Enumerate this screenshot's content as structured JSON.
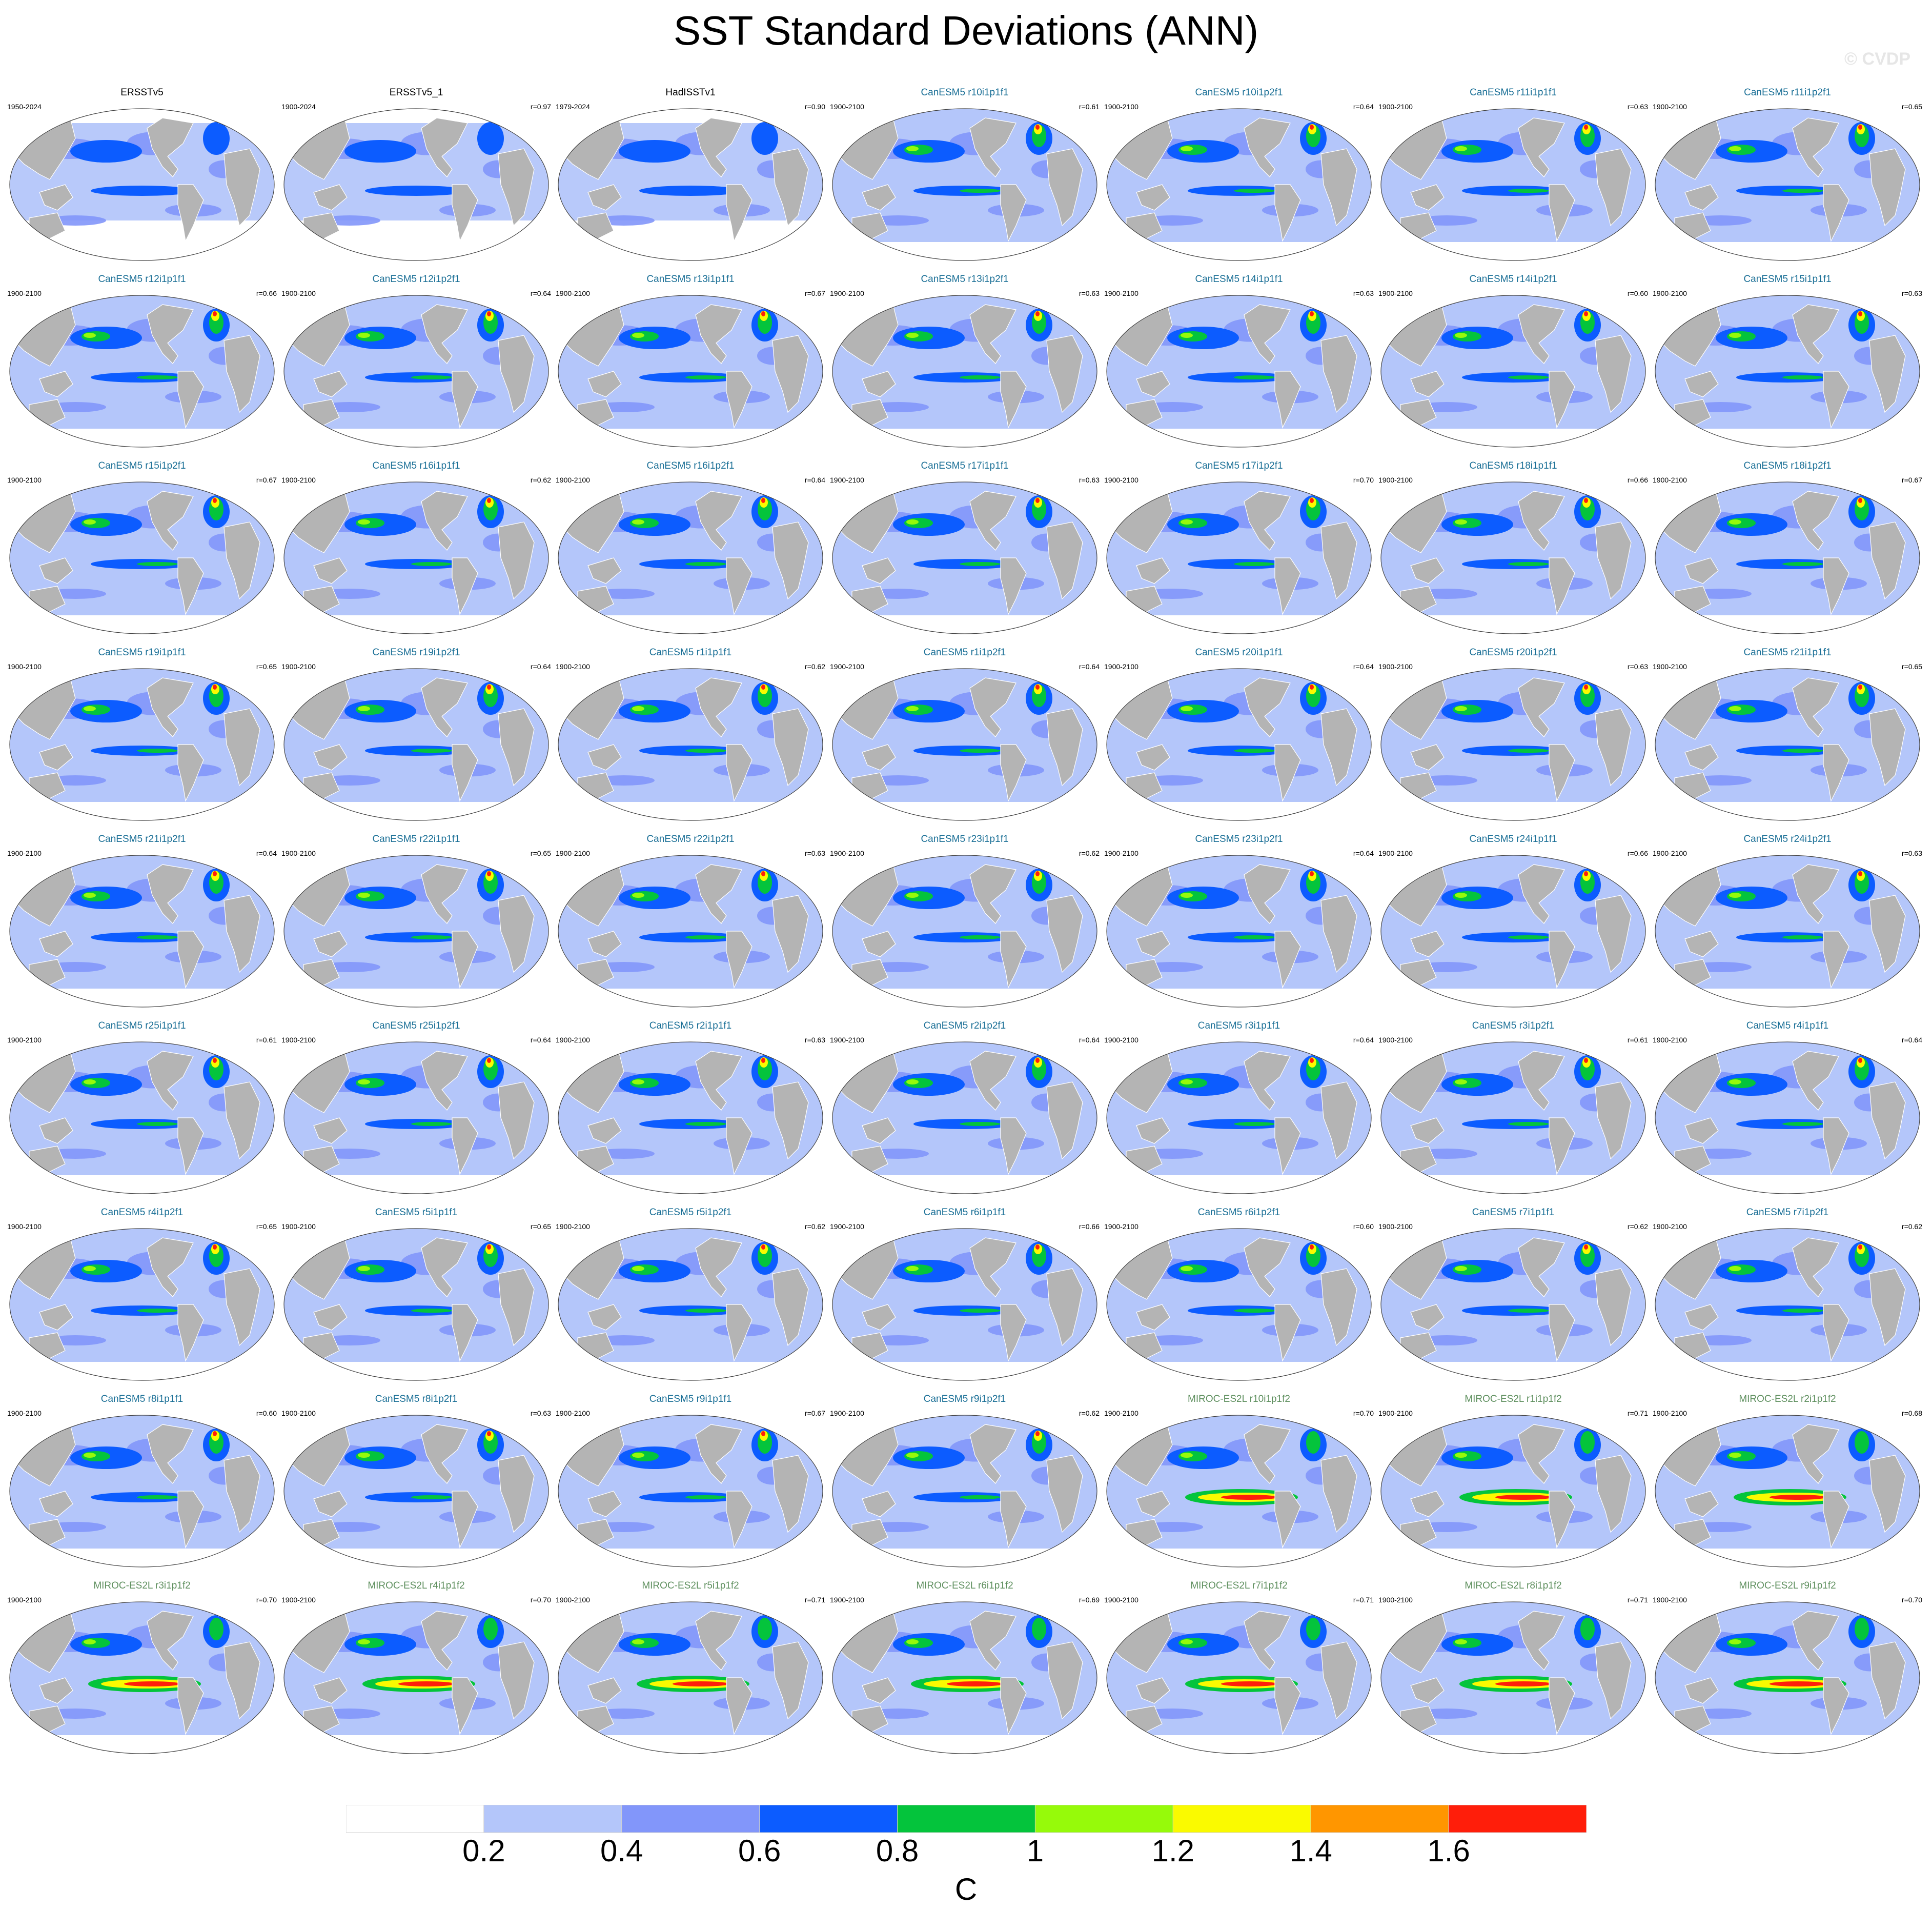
{
  "title": "SST Standard Deviations (ANN)",
  "watermark": "© CVDP",
  "units": "C",
  "colors": {
    "obs_label": "#000000",
    "canesm5_label": "#1a6f96",
    "miroc_label": "#5e8f5e",
    "land": "#b4b4b4",
    "bins": [
      "#ffffff",
      "#b4c6fa",
      "#8296fa",
      "#0c5cff",
      "#04c43c",
      "#96fa0a",
      "#fafa00",
      "#ff9600",
      "#ff1e0a"
    ]
  },
  "colorbar": {
    "levels": [
      "0.2",
      "0.4",
      "0.6",
      "0.8",
      "1",
      "1.2",
      "1.4",
      "1.6"
    ]
  },
  "panels": [
    {
      "model": "ERSSTv5",
      "period": "1950-2024",
      "r": "",
      "group": "obs"
    },
    {
      "model": "ERSSTv5_1",
      "period": "1900-2024",
      "r": "r=0.97",
      "group": "obs"
    },
    {
      "model": "HadISSTv1",
      "period": "1979-2024",
      "r": "r=0.90",
      "group": "obs"
    },
    {
      "model": "CanESM5 r10i1p1f1",
      "period": "1900-2100",
      "r": "r=0.61",
      "group": "canesm5"
    },
    {
      "model": "CanESM5 r10i1p2f1",
      "period": "1900-2100",
      "r": "r=0.64",
      "group": "canesm5"
    },
    {
      "model": "CanESM5 r11i1p1f1",
      "period": "1900-2100",
      "r": "r=0.63",
      "group": "canesm5"
    },
    {
      "model": "CanESM5 r11i1p2f1",
      "period": "1900-2100",
      "r": "r=0.65",
      "group": "canesm5"
    },
    {
      "model": "CanESM5 r12i1p1f1",
      "period": "1900-2100",
      "r": "r=0.66",
      "group": "canesm5"
    },
    {
      "model": "CanESM5 r12i1p2f1",
      "period": "1900-2100",
      "r": "r=0.64",
      "group": "canesm5"
    },
    {
      "model": "CanESM5 r13i1p1f1",
      "period": "1900-2100",
      "r": "r=0.67",
      "group": "canesm5"
    },
    {
      "model": "CanESM5 r13i1p2f1",
      "period": "1900-2100",
      "r": "r=0.63",
      "group": "canesm5"
    },
    {
      "model": "CanESM5 r14i1p1f1",
      "period": "1900-2100",
      "r": "r=0.63",
      "group": "canesm5"
    },
    {
      "model": "CanESM5 r14i1p2f1",
      "period": "1900-2100",
      "r": "r=0.60",
      "group": "canesm5"
    },
    {
      "model": "CanESM5 r15i1p1f1",
      "period": "1900-2100",
      "r": "r=0.63",
      "group": "canesm5"
    },
    {
      "model": "CanESM5 r15i1p2f1",
      "period": "1900-2100",
      "r": "r=0.67",
      "group": "canesm5"
    },
    {
      "model": "CanESM5 r16i1p1f1",
      "period": "1900-2100",
      "r": "r=0.62",
      "group": "canesm5"
    },
    {
      "model": "CanESM5 r16i1p2f1",
      "period": "1900-2100",
      "r": "r=0.64",
      "group": "canesm5"
    },
    {
      "model": "CanESM5 r17i1p1f1",
      "period": "1900-2100",
      "r": "r=0.63",
      "group": "canesm5"
    },
    {
      "model": "CanESM5 r17i1p2f1",
      "period": "1900-2100",
      "r": "r=0.70",
      "group": "canesm5"
    },
    {
      "model": "CanESM5 r18i1p1f1",
      "period": "1900-2100",
      "r": "r=0.66",
      "group": "canesm5"
    },
    {
      "model": "CanESM5 r18i1p2f1",
      "period": "1900-2100",
      "r": "r=0.67",
      "group": "canesm5"
    },
    {
      "model": "CanESM5 r19i1p1f1",
      "period": "1900-2100",
      "r": "r=0.65",
      "group": "canesm5"
    },
    {
      "model": "CanESM5 r19i1p2f1",
      "period": "1900-2100",
      "r": "r=0.64",
      "group": "canesm5"
    },
    {
      "model": "CanESM5 r1i1p1f1",
      "period": "1900-2100",
      "r": "r=0.62",
      "group": "canesm5"
    },
    {
      "model": "CanESM5 r1i1p2f1",
      "period": "1900-2100",
      "r": "r=0.64",
      "group": "canesm5"
    },
    {
      "model": "CanESM5 r20i1p1f1",
      "period": "1900-2100",
      "r": "r=0.64",
      "group": "canesm5"
    },
    {
      "model": "CanESM5 r20i1p2f1",
      "period": "1900-2100",
      "r": "r=0.63",
      "group": "canesm5"
    },
    {
      "model": "CanESM5 r21i1p1f1",
      "period": "1900-2100",
      "r": "r=0.65",
      "group": "canesm5"
    },
    {
      "model": "CanESM5 r21i1p2f1",
      "period": "1900-2100",
      "r": "r=0.64",
      "group": "canesm5"
    },
    {
      "model": "CanESM5 r22i1p1f1",
      "period": "1900-2100",
      "r": "r=0.65",
      "group": "canesm5"
    },
    {
      "model": "CanESM5 r22i1p2f1",
      "period": "1900-2100",
      "r": "r=0.63",
      "group": "canesm5"
    },
    {
      "model": "CanESM5 r23i1p1f1",
      "period": "1900-2100",
      "r": "r=0.62",
      "group": "canesm5"
    },
    {
      "model": "CanESM5 r23i1p2f1",
      "period": "1900-2100",
      "r": "r=0.64",
      "group": "canesm5"
    },
    {
      "model": "CanESM5 r24i1p1f1",
      "period": "1900-2100",
      "r": "r=0.66",
      "group": "canesm5"
    },
    {
      "model": "CanESM5 r24i1p2f1",
      "period": "1900-2100",
      "r": "r=0.63",
      "group": "canesm5"
    },
    {
      "model": "CanESM5 r25i1p1f1",
      "period": "1900-2100",
      "r": "r=0.61",
      "group": "canesm5"
    },
    {
      "model": "CanESM5 r25i1p2f1",
      "period": "1900-2100",
      "r": "r=0.64",
      "group": "canesm5"
    },
    {
      "model": "CanESM5 r2i1p1f1",
      "period": "1900-2100",
      "r": "r=0.63",
      "group": "canesm5"
    },
    {
      "model": "CanESM5 r2i1p2f1",
      "period": "1900-2100",
      "r": "r=0.64",
      "group": "canesm5"
    },
    {
      "model": "CanESM5 r3i1p1f1",
      "period": "1900-2100",
      "r": "r=0.64",
      "group": "canesm5"
    },
    {
      "model": "CanESM5 r3i1p2f1",
      "period": "1900-2100",
      "r": "r=0.61",
      "group": "canesm5"
    },
    {
      "model": "CanESM5 r4i1p1f1",
      "period": "1900-2100",
      "r": "r=0.64",
      "group": "canesm5"
    },
    {
      "model": "CanESM5 r4i1p2f1",
      "period": "1900-2100",
      "r": "r=0.65",
      "group": "canesm5"
    },
    {
      "model": "CanESM5 r5i1p1f1",
      "period": "1900-2100",
      "r": "r=0.65",
      "group": "canesm5"
    },
    {
      "model": "CanESM5 r5i1p2f1",
      "period": "1900-2100",
      "r": "r=0.62",
      "group": "canesm5"
    },
    {
      "model": "CanESM5 r6i1p1f1",
      "period": "1900-2100",
      "r": "r=0.66",
      "group": "canesm5"
    },
    {
      "model": "CanESM5 r6i1p2f1",
      "period": "1900-2100",
      "r": "r=0.60",
      "group": "canesm5"
    },
    {
      "model": "CanESM5 r7i1p1f1",
      "period": "1900-2100",
      "r": "r=0.62",
      "group": "canesm5"
    },
    {
      "model": "CanESM5 r7i1p2f1",
      "period": "1900-2100",
      "r": "r=0.62",
      "group": "canesm5"
    },
    {
      "model": "CanESM5 r8i1p1f1",
      "period": "1900-2100",
      "r": "r=0.60",
      "group": "canesm5"
    },
    {
      "model": "CanESM5 r8i1p2f1",
      "period": "1900-2100",
      "r": "r=0.63",
      "group": "canesm5"
    },
    {
      "model": "CanESM5 r9i1p1f1",
      "period": "1900-2100",
      "r": "r=0.67",
      "group": "canesm5"
    },
    {
      "model": "CanESM5 r9i1p2f1",
      "period": "1900-2100",
      "r": "r=0.62",
      "group": "canesm5"
    },
    {
      "model": "MIROC-ES2L r10i1p1f2",
      "period": "1900-2100",
      "r": "r=0.70",
      "group": "miroc"
    },
    {
      "model": "MIROC-ES2L r1i1p1f2",
      "period": "1900-2100",
      "r": "r=0.71",
      "group": "miroc"
    },
    {
      "model": "MIROC-ES2L r2i1p1f2",
      "period": "1900-2100",
      "r": "r=0.68",
      "group": "miroc"
    },
    {
      "model": "MIROC-ES2L r3i1p1f2",
      "period": "1900-2100",
      "r": "r=0.70",
      "group": "miroc"
    },
    {
      "model": "MIROC-ES2L r4i1p1f2",
      "period": "1900-2100",
      "r": "r=0.70",
      "group": "miroc"
    },
    {
      "model": "MIROC-ES2L r5i1p1f2",
      "period": "1900-2100",
      "r": "r=0.71",
      "group": "miroc"
    },
    {
      "model": "MIROC-ES2L r6i1p1f2",
      "period": "1900-2100",
      "r": "r=0.69",
      "group": "miroc"
    },
    {
      "model": "MIROC-ES2L r7i1p1f2",
      "period": "1900-2100",
      "r": "r=0.71",
      "group": "miroc"
    },
    {
      "model": "MIROC-ES2L r8i1p1f2",
      "period": "1900-2100",
      "r": "r=0.71",
      "group": "miroc"
    },
    {
      "model": "MIROC-ES2L r9i1p1f2",
      "period": "1900-2100",
      "r": "r=0.70",
      "group": "miroc"
    }
  ]
}
